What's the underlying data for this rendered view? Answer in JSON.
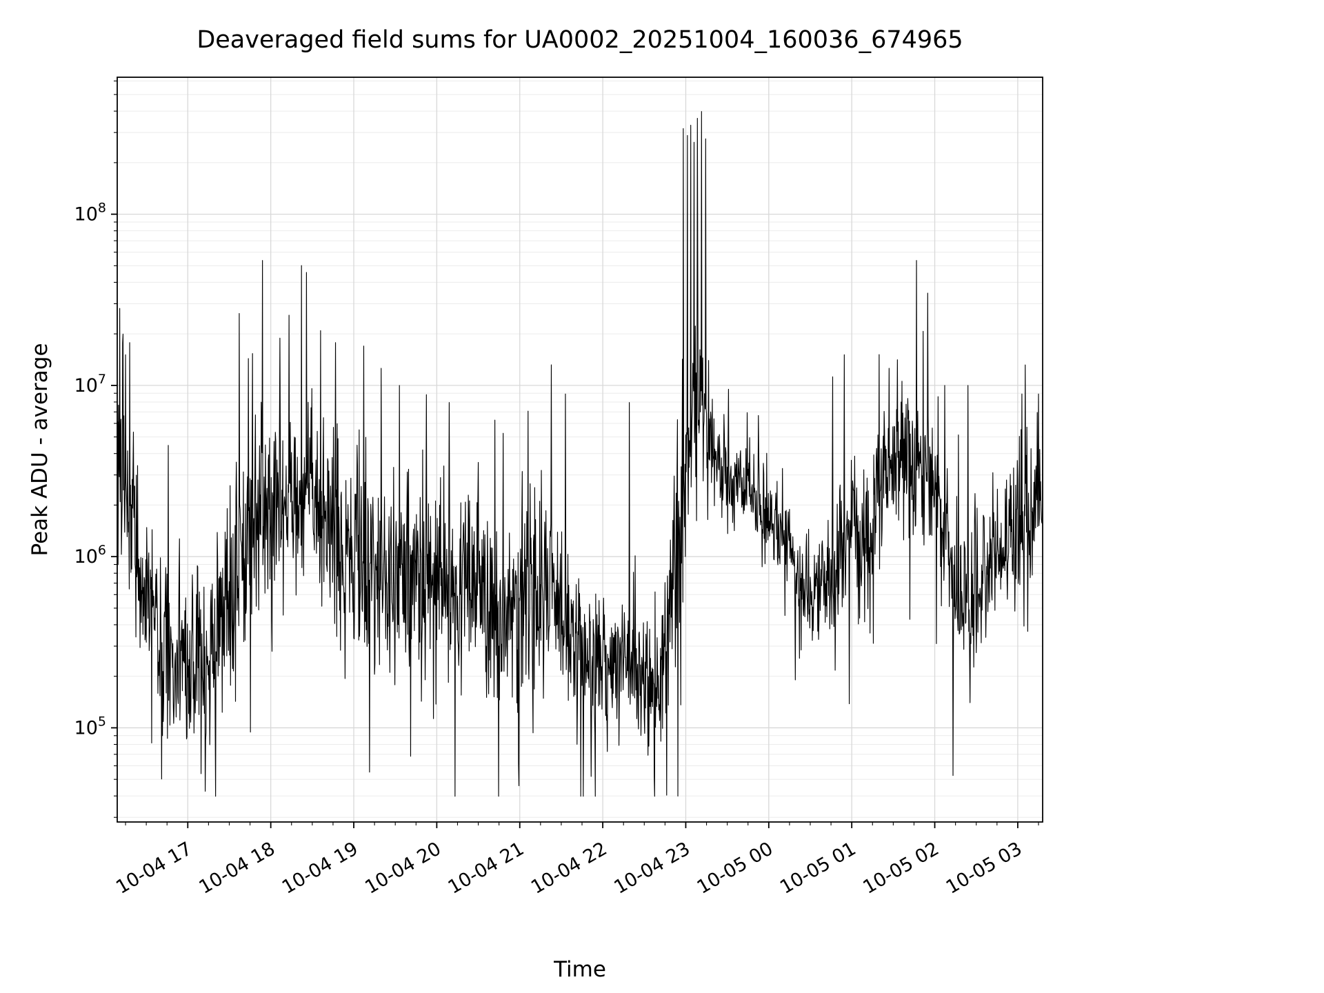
{
  "chart_data": {
    "type": "line",
    "title": "Deaveraged field sums for UA0002_20251004_160036_674965",
    "xlabel": "Time",
    "ylabel": "Peak ADU - average",
    "y_scale": "log",
    "ylim": [
      28000,
      630000000
    ],
    "ylim_log10": [
      4.45,
      8.8
    ],
    "y_major_tick_exponents": [
      5,
      6,
      7,
      8
    ],
    "x_tick_labels": [
      "10-04 17",
      "10-04 18",
      "10-04 19",
      "10-04 20",
      "10-04 21",
      "10-04 22",
      "10-04 23",
      "10-05 00",
      "10-05 01",
      "10-05 02",
      "10-05 03"
    ],
    "x_tick_hours": [
      17,
      18,
      19,
      20,
      21,
      22,
      23,
      24,
      25,
      26,
      27
    ],
    "x_minor_tick_step_hours": 0.25,
    "x_range_hours": [
      16.15,
      27.3
    ],
    "line_color": "#000000",
    "background_color": "#ffffff",
    "grid": {
      "visible": true,
      "major_color": "#d8d8d8",
      "minor_color": "#ebebeb"
    },
    "series": [
      {
        "name": "Peak ADU - average",
        "samples_per_hour": 200,
        "seed": 20251004,
        "baseline_log10": [
          [
            16.15,
            6.55,
            0.5
          ],
          [
            16.45,
            5.85,
            0.35
          ],
          [
            16.7,
            5.5,
            0.35
          ],
          [
            17.0,
            5.35,
            0.35
          ],
          [
            17.25,
            5.4,
            0.4
          ],
          [
            17.55,
            5.9,
            0.45
          ],
          [
            17.85,
            6.3,
            0.4
          ],
          [
            18.1,
            6.35,
            0.35
          ],
          [
            18.5,
            6.3,
            0.35
          ],
          [
            18.8,
            6.1,
            0.4
          ],
          [
            19.2,
            5.9,
            0.42
          ],
          [
            19.6,
            5.85,
            0.42
          ],
          [
            20.0,
            5.9,
            0.4
          ],
          [
            20.4,
            5.85,
            0.42
          ],
          [
            20.8,
            5.6,
            0.42
          ],
          [
            21.1,
            5.75,
            0.45
          ],
          [
            21.45,
            5.7,
            0.45
          ],
          [
            21.8,
            5.45,
            0.3
          ],
          [
            22.1,
            5.4,
            0.28
          ],
          [
            22.4,
            5.3,
            0.3
          ],
          [
            22.65,
            5.15,
            0.35
          ],
          [
            22.85,
            5.8,
            0.45
          ],
          [
            23.0,
            6.4,
            0.4
          ],
          [
            23.15,
            6.9,
            0.4
          ],
          [
            23.35,
            6.55,
            0.25
          ],
          [
            23.6,
            6.4,
            0.2
          ],
          [
            23.9,
            6.3,
            0.2
          ],
          [
            24.15,
            6.15,
            0.18
          ],
          [
            24.45,
            5.8,
            0.22
          ],
          [
            24.7,
            5.75,
            0.28
          ],
          [
            24.95,
            6.15,
            0.3
          ],
          [
            25.15,
            6.1,
            0.35
          ],
          [
            25.35,
            6.45,
            0.3
          ],
          [
            25.6,
            6.65,
            0.28
          ],
          [
            25.85,
            6.5,
            0.3
          ],
          [
            26.05,
            6.35,
            0.3
          ],
          [
            26.3,
            5.7,
            0.35
          ],
          [
            26.55,
            5.85,
            0.35
          ],
          [
            26.8,
            6.1,
            0.3
          ],
          [
            27.0,
            6.15,
            0.32
          ],
          [
            27.3,
            6.35,
            0.3
          ]
        ],
        "spikes_log10": [
          [
            16.18,
            7.45
          ],
          [
            16.22,
            7.3
          ],
          [
            16.3,
            7.25
          ],
          [
            17.62,
            7.42
          ],
          [
            17.9,
            7.73
          ],
          [
            18.22,
            7.41
          ],
          [
            18.37,
            7.7
          ],
          [
            18.43,
            7.66
          ],
          [
            18.6,
            7.32
          ],
          [
            18.78,
            7.25
          ],
          [
            19.12,
            7.23
          ],
          [
            19.33,
            7.1
          ],
          [
            19.55,
            7.0
          ],
          [
            20.15,
            6.9
          ],
          [
            20.5,
            6.55
          ],
          [
            21.1,
            6.85
          ],
          [
            21.38,
            7.12
          ],
          [
            21.55,
            6.95
          ],
          [
            22.32,
            6.9
          ],
          [
            22.9,
            6.8
          ],
          [
            22.97,
            8.5
          ],
          [
            23.02,
            8.46
          ],
          [
            23.06,
            8.52
          ],
          [
            23.1,
            8.42
          ],
          [
            23.14,
            8.56
          ],
          [
            23.19,
            8.6
          ],
          [
            23.24,
            8.44
          ],
          [
            24.77,
            7.05
          ],
          [
            25.33,
            7.18
          ],
          [
            25.45,
            7.1
          ],
          [
            25.55,
            7.15
          ],
          [
            25.78,
            7.73
          ],
          [
            26.12,
            7.0
          ],
          [
            26.4,
            7.0
          ],
          [
            27.05,
            6.95
          ],
          [
            27.25,
            6.95
          ]
        ]
      }
    ]
  }
}
